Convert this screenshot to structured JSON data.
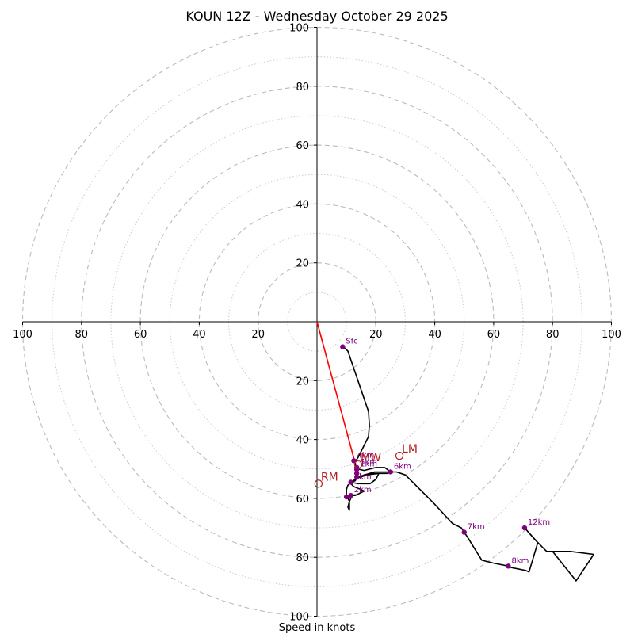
{
  "chart_data": {
    "type": "hodograph",
    "title": "KOUN 12Z - Wednesday October 29 2025",
    "xlabel": "Speed in knots",
    "units": "knots",
    "max_speed": 100,
    "ring_major_step": 20,
    "ring_minor_step": 10,
    "tick_labels": [
      "100",
      "80",
      "60",
      "40",
      "20",
      "20",
      "40",
      "60",
      "80",
      "100"
    ],
    "y_tick_labels_upper": [
      "20",
      "40",
      "60",
      "80",
      "100"
    ],
    "y_tick_labels_lower": [
      "20",
      "40",
      "60",
      "80",
      "100"
    ],
    "colors": {
      "trace": "#000000",
      "height_points": "#800080",
      "markers": "#b22222",
      "shear_line": "#ff0000",
      "rings": "#bbbbbb"
    },
    "trace": [
      [
        9,
        -8.5
      ],
      [
        10.5,
        -10
      ],
      [
        17.5,
        -30.5
      ],
      [
        17.8,
        -35
      ],
      [
        17.5,
        -39
      ],
      [
        15,
        -44
      ],
      [
        14,
        -46
      ],
      [
        13,
        -47.5
      ],
      [
        13,
        -49
      ],
      [
        14,
        -50
      ],
      [
        16,
        -50.5
      ],
      [
        20,
        -49.5
      ],
      [
        23,
        -49.5
      ],
      [
        25,
        -51
      ],
      [
        23,
        -51
      ],
      [
        19.5,
        -51
      ],
      [
        14.5,
        -52.5
      ],
      [
        13.5,
        -53
      ],
      [
        13,
        -54
      ],
      [
        11.5,
        -54.5
      ],
      [
        14,
        -55
      ],
      [
        18,
        -55
      ],
      [
        20,
        -53.5
      ],
      [
        21,
        -51.5
      ],
      [
        19,
        -51.5
      ],
      [
        16,
        -52
      ],
      [
        13,
        -53.5
      ],
      [
        10.5,
        -55.5
      ],
      [
        10,
        -57
      ],
      [
        10,
        -59
      ],
      [
        10.5,
        -60
      ],
      [
        11,
        -61
      ],
      [
        11,
        -64
      ],
      [
        10.5,
        -63
      ],
      [
        11,
        -61
      ],
      [
        11.5,
        -60
      ],
      [
        12,
        -59
      ],
      [
        13,
        -59
      ],
      [
        15,
        -58
      ],
      [
        16,
        -57.5
      ],
      [
        15,
        -57
      ],
      [
        12.5,
        -56
      ],
      [
        11.5,
        -55
      ],
      [
        11.5,
        -54.5
      ],
      [
        14,
        -53
      ],
      [
        17,
        -52
      ],
      [
        21,
        -51.5
      ],
      [
        24,
        -51.5
      ],
      [
        25,
        -51
      ],
      [
        27,
        -51
      ],
      [
        30,
        -52
      ],
      [
        32,
        -54
      ],
      [
        40,
        -62
      ],
      [
        46,
        -68.5
      ],
      [
        49,
        -70
      ],
      [
        50,
        -71.5
      ],
      [
        51,
        -73
      ],
      [
        56,
        -81
      ],
      [
        60,
        -82
      ],
      [
        65,
        -83
      ],
      [
        66,
        -83.5
      ],
      [
        71,
        -84.5
      ],
      [
        72,
        -85
      ],
      [
        75,
        -75
      ],
      [
        74,
        -74
      ],
      [
        70.5,
        -70
      ],
      [
        75,
        -75
      ],
      [
        78,
        -78
      ],
      [
        86,
        -78
      ],
      [
        94,
        -79
      ],
      [
        88,
        -88
      ],
      [
        80,
        -78
      ],
      [
        86,
        -78
      ]
    ],
    "height_points": [
      {
        "label": "Sfc",
        "u": 8.7,
        "v": -8.5
      },
      {
        "label": "1km",
        "u": 13.5,
        "v": -50.2
      },
      {
        "label": "2km",
        "u": 11.5,
        "v": -59
      },
      {
        "label": "3km",
        "u": 11.5,
        "v": -54.5
      },
      {
        "label": "4km",
        "u": 12.5,
        "v": -47.2
      },
      {
        "label": "5km",
        "u": 13.5,
        "v": -49.5
      },
      {
        "label": "6km",
        "u": 25,
        "v": -51
      },
      {
        "label": "7km",
        "u": 50,
        "v": -71.5
      },
      {
        "label": "8km",
        "u": 65,
        "v": -83
      },
      {
        "label": "12km",
        "u": 70.5,
        "v": -70
      }
    ],
    "unlabeled_points": [
      {
        "u": 13.5,
        "v": -51.5
      },
      {
        "u": 13.5,
        "v": -52.8
      },
      {
        "u": 10,
        "v": -59.5
      }
    ],
    "markers": [
      {
        "label": "LM",
        "u": 28,
        "v": -45.5
      },
      {
        "label": "RM",
        "u": 0.5,
        "v": -55
      },
      {
        "label": "MW",
        "u": 14,
        "v": -48.5
      }
    ],
    "shear_line": {
      "from": [
        0,
        0
      ],
      "to": [
        13.5,
        -50
      ]
    }
  }
}
